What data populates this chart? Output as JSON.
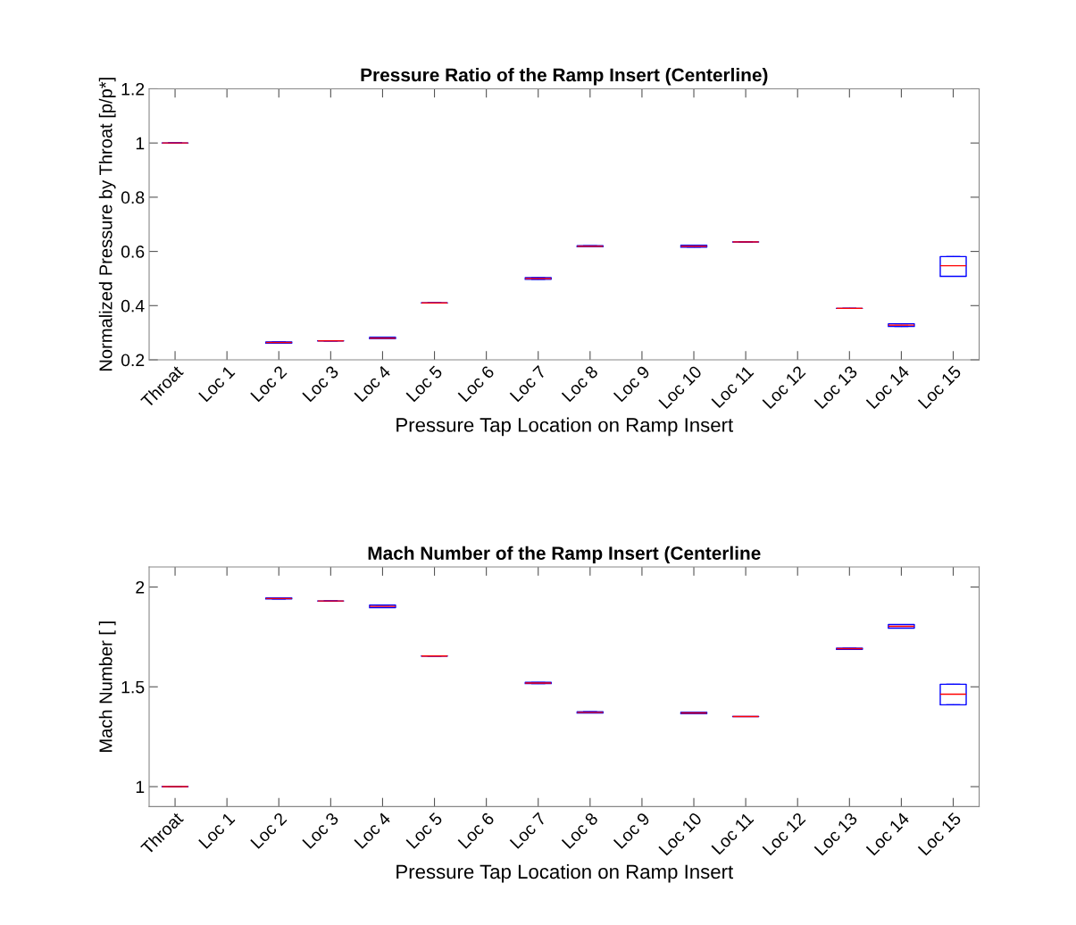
{
  "chart_data": [
    {
      "type": "box",
      "title": "Pressure Ratio of the Ramp Insert (Centerline)",
      "xlabel": "Pressure Tap Location on Ramp Insert",
      "ylabel": "Normalized Pressure by Throat [p/p*]",
      "categories": [
        "Throat",
        "Loc 1",
        "Loc 2",
        "Loc 3",
        "Loc 4",
        "Loc 5",
        "Loc 6",
        "Loc 7",
        "Loc 8",
        "Loc 9",
        "Loc 10",
        "Loc 11",
        "Loc 12",
        "Loc 13",
        "Loc 14",
        "Loc 15"
      ],
      "ylim": [
        0.2,
        1.2
      ],
      "yticks": [
        0.2,
        0.4,
        0.6,
        0.8,
        1,
        1.2
      ],
      "grid": false,
      "series": [
        {
          "color": "#0000ff",
          "boxes": [
            {
              "low": 1.0,
              "q1": 1.0,
              "median": 1.0,
              "q3": 1.0,
              "high": 1.0
            },
            null,
            {
              "low": 0.262,
              "q1": 0.262,
              "median": 0.264,
              "q3": 0.266,
              "high": 0.266
            },
            {
              "low": 0.27,
              "q1": 0.27,
              "median": 0.27,
              "q3": 0.27,
              "high": 0.27
            },
            {
              "low": 0.278,
              "q1": 0.278,
              "median": 0.28,
              "q3": 0.283,
              "high": 0.283
            },
            {
              "low": 0.41,
              "q1": 0.41,
              "median": 0.41,
              "q3": 0.41,
              "high": 0.41
            },
            null,
            {
              "low": 0.497,
              "q1": 0.497,
              "median": 0.5,
              "q3": 0.503,
              "high": 0.503
            },
            {
              "low": 0.617,
              "q1": 0.617,
              "median": 0.619,
              "q3": 0.621,
              "high": 0.621
            },
            null,
            {
              "low": 0.616,
              "q1": 0.616,
              "median": 0.619,
              "q3": 0.623,
              "high": 0.623
            },
            {
              "low": 0.635,
              "q1": 0.635,
              "median": 0.635,
              "q3": 0.635,
              "high": 0.635
            },
            null,
            {
              "low": 0.39,
              "q1": 0.39,
              "median": 0.39,
              "q3": 0.39,
              "high": 0.39
            },
            {
              "low": 0.323,
              "q1": 0.323,
              "median": 0.328,
              "q3": 0.333,
              "high": 0.333
            },
            {
              "low": 0.508,
              "q1": 0.508,
              "median": 0.547,
              "q3": 0.581,
              "high": 0.581
            }
          ]
        }
      ]
    },
    {
      "type": "box",
      "title": "Mach Number of the Ramp Insert (Centerline",
      "xlabel": "Pressure Tap Location on Ramp Insert",
      "ylabel": "Mach Number [ ]",
      "categories": [
        "Throat",
        "Loc 1",
        "Loc 2",
        "Loc 3",
        "Loc 4",
        "Loc 5",
        "Loc 6",
        "Loc 7",
        "Loc 8",
        "Loc 9",
        "Loc 10",
        "Loc 11",
        "Loc 12",
        "Loc 13",
        "Loc 14",
        "Loc 15"
      ],
      "ylim": [
        0.9,
        2.1
      ],
      "yticks": [
        1,
        1.5,
        2
      ],
      "grid": false,
      "series": [
        {
          "color": "#0000ff",
          "boxes": [
            {
              "low": 1.0,
              "q1": 1.0,
              "median": 1.0,
              "q3": 1.0,
              "high": 1.0
            },
            null,
            {
              "low": 1.94,
              "q1": 1.94,
              "median": 1.942,
              "q3": 1.945,
              "high": 1.945
            },
            {
              "low": 1.93,
              "q1": 1.93,
              "median": 1.93,
              "q3": 1.93,
              "high": 1.93
            },
            {
              "low": 1.897,
              "q1": 1.897,
              "median": 1.903,
              "q3": 1.909,
              "high": 1.909
            },
            {
              "low": 1.654,
              "q1": 1.654,
              "median": 1.654,
              "q3": 1.654,
              "high": 1.654
            },
            null,
            {
              "low": 1.516,
              "q1": 1.516,
              "median": 1.519,
              "q3": 1.522,
              "high": 1.522
            },
            {
              "low": 1.369,
              "q1": 1.369,
              "median": 1.372,
              "q3": 1.375,
              "high": 1.375
            },
            null,
            {
              "low": 1.366,
              "q1": 1.366,
              "median": 1.369,
              "q3": 1.373,
              "high": 1.373
            },
            {
              "low": 1.351,
              "q1": 1.351,
              "median": 1.351,
              "q3": 1.351,
              "high": 1.351
            },
            null,
            {
              "low": 1.688,
              "q1": 1.688,
              "median": 1.691,
              "q3": 1.694,
              "high": 1.694
            },
            {
              "low": 1.794,
              "q1": 1.794,
              "median": 1.803,
              "q3": 1.812,
              "high": 1.812
            },
            {
              "low": 1.41,
              "q1": 1.41,
              "median": 1.463,
              "q3": 1.513,
              "high": 1.513
            }
          ]
        }
      ]
    }
  ]
}
